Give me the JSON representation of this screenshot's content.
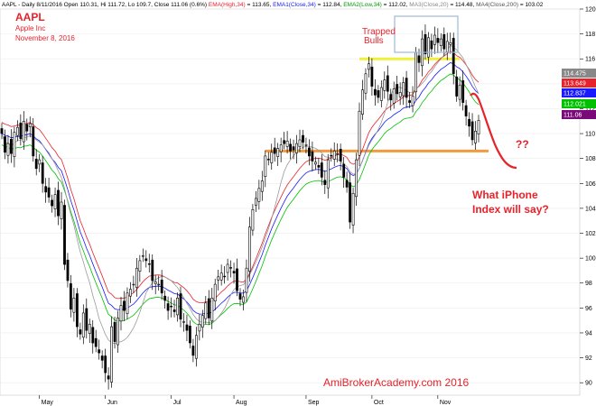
{
  "header": {
    "prefix": "AAPL - Daily 8/11/2016 Open 110.31, Hi 111.72, Lo 109.7, Close 111.06 (0.6%) ",
    "ema_high_label": "EMA(High,34)",
    "ema_high_value": " = 113.65, ",
    "ema1_label": "EMA1(Close,34)",
    "ema1_value": " = 112.84, ",
    "ema2_label": "EMA2(Low,34)",
    "ema2_value": " = 112.02, ",
    "ma3_label": "MA3(Close,20)",
    "ma3_value": " = 114.48, ",
    "ma4_label": "MA4(Close,200)",
    "ma4_value": " = 103.02"
  },
  "title": {
    "ticker": "AAPL",
    "company": "Apple Inc",
    "date": "November 8, 2016"
  },
  "annotations": {
    "trapped": "Trapped",
    "bulls": "Bulls",
    "question": "??",
    "iphone_line1": "What iPhone",
    "iphone_line2": "Index will say?",
    "watermark": "AmiBrokerAcademy.com   2016"
  },
  "colors": {
    "candle": "#000000",
    "ema_high": "#e8222a",
    "ema_close": "#1a1aff",
    "ema_low": "#00c000",
    "ma20": "#9a9a9a",
    "ma200": "#333333",
    "support": "#f39a3c",
    "resistance": "#f0f03a",
    "box": "#9fb9d6",
    "annotation": "#e8222a"
  },
  "chart_data": {
    "type": "candlestick",
    "symbol": "AAPL",
    "ylim": [
      89,
      120
    ],
    "y_ticks": [
      90,
      92,
      94,
      96,
      98,
      100,
      102,
      104,
      106,
      108,
      110,
      112,
      114,
      116,
      118,
      120
    ],
    "x_ticks": [
      "May",
      "Jun",
      "Jul",
      "Aug",
      "Sep",
      "Oct",
      "Nov"
    ],
    "value_badges": [
      {
        "label": "114.475",
        "value": 114.475,
        "color": "#888888"
      },
      {
        "label": "113.649",
        "value": 113.649,
        "color": "#e8222a"
      },
      {
        "label": "112.837",
        "value": 112.837,
        "color": "#1a1aff"
      },
      {
        "label": "112.021",
        "value": 112.021,
        "color": "#00c000"
      },
      {
        "label": "111.06",
        "value": 111.06,
        "color": "#7a0a7a"
      }
    ],
    "levels": [
      {
        "name": "support",
        "value": 108.6
      },
      {
        "name": "resistance",
        "value": 116.0
      }
    ],
    "close": [
      110,
      108.5,
      109.2,
      108.4,
      110.1,
      110.5,
      109.6,
      111,
      110.2,
      110.8,
      108.2,
      107.2,
      107.9,
      106,
      105.3,
      104.9,
      104.2,
      105.1,
      103.4,
      104.5,
      99.5,
      98.2,
      95.9,
      96.8,
      94.5,
      93.9,
      95.6,
      94.2,
      94.7,
      93.2,
      92.9,
      92.4,
      91.8,
      90.8,
      90.3,
      94.5,
      93.3,
      95.2,
      96.2,
      95.8,
      97.2,
      97.5,
      97.9,
      99.2,
      99.8,
      100.2,
      99.8,
      99.5,
      98.2,
      98.1,
      97.9,
      97.2,
      96.6,
      95.8,
      96.1,
      95.7,
      96.8,
      95.1,
      94.9,
      94.2,
      93.2,
      92.2,
      93.8,
      94.7,
      95.4,
      96.4,
      95.2,
      96.8,
      97.9,
      98.5,
      98.8,
      98.5,
      99.5,
      99.2,
      98.8,
      97.4,
      96.7,
      96.9,
      99.2,
      102.5,
      103.9,
      104.8,
      105.6,
      106.2,
      108.2,
      107.9,
      108.5,
      108.4,
      108.8,
      109.1,
      109.2,
      109.4,
      108.6,
      108.7,
      109.2,
      109.5,
      109.3,
      109.1,
      108.2,
      107.8,
      107.7,
      107.3,
      106.5,
      105.9,
      107.9,
      108.2,
      108.6,
      108.4,
      107.8,
      106.5,
      105.7,
      102.9,
      105.2,
      107.9,
      111.8,
      113.5,
      114.8,
      115.6,
      113.8,
      113.1,
      112.9,
      113.7,
      114.3,
      113.4,
      112.7,
      113.6,
      113.2,
      113.3,
      114.1,
      112.9,
      112.5,
      113.0,
      116.5,
      115.7,
      117.6,
      116.4,
      117.7,
      116.8,
      117.9,
      117.3,
      117.6,
      116.8,
      117.4,
      117.3,
      114.8,
      113.0,
      113.9,
      112.5,
      111.4,
      110.6,
      109.5,
      110.2,
      111.06
    ]
  }
}
